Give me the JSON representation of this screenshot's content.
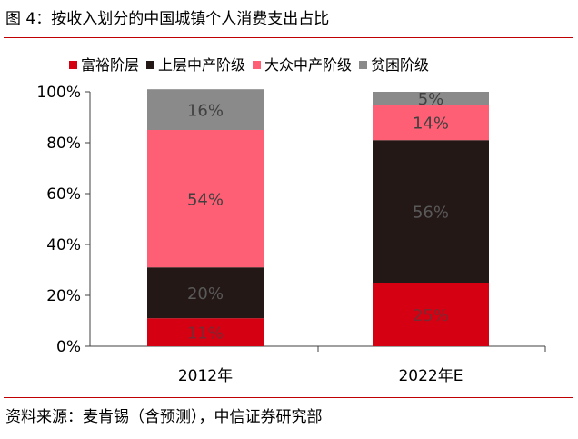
{
  "figure": {
    "title": "图 4：按收入划分的中国城镇个人消费支出占比",
    "source": "资料来源：麦肯锡（含预测），中信证券研究部"
  },
  "chart_data": {
    "type": "bar",
    "stacked": true,
    "categories": [
      "2012年",
      "2022年E"
    ],
    "series": [
      {
        "name": "富裕阶层",
        "color": "#d50011",
        "values": [
          11,
          25
        ],
        "labels": [
          "11%",
          "25%"
        ],
        "label_color": "#7a2a33"
      },
      {
        "name": "上层中产阶级",
        "color": "#231816",
        "values": [
          20,
          56
        ],
        "labels": [
          "20%",
          "56%"
        ],
        "label_color": "#595959"
      },
      {
        "name": "大众中产阶级",
        "color": "#ff5f74",
        "values": [
          54,
          14
        ],
        "labels": [
          "54%",
          "14%"
        ],
        "label_color": "#404040"
      },
      {
        "name": "贫困阶级",
        "color": "#8a8a8a",
        "values": [
          16,
          5
        ],
        "labels": [
          "16%",
          "5%"
        ],
        "label_color": "#404040"
      }
    ],
    "y_ticks": [
      "0%",
      "20%",
      "40%",
      "60%",
      "80%",
      "100%"
    ],
    "ylim": [
      0,
      100
    ],
    "legend_position": "top",
    "grid": false
  }
}
